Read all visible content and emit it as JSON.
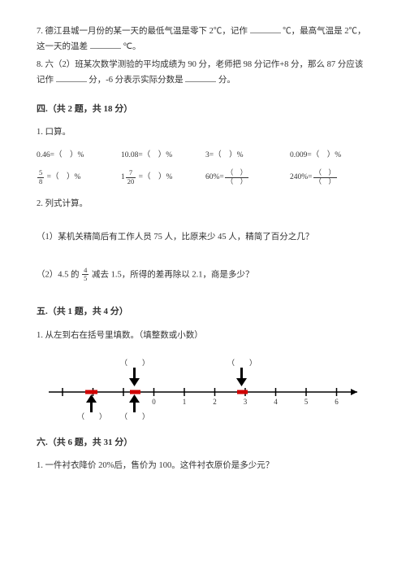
{
  "q7": {
    "text_a": "7. 德江县城一月份的某一天的最低气温是零下 2℃，记作",
    "text_b": "℃，最高气温是 2℃，这一天的温差",
    "text_c": "℃。"
  },
  "q8": {
    "text_a": "8. 六（2）班某次数学测验的平均成绩为 90 分，老师把 98 分记作+8 分，那么 87 分应该记作",
    "text_b": "分，-6 分表示实际分数是",
    "text_c": "分。"
  },
  "sec4": {
    "title": "四.（共 2 题，共 18 分）",
    "q1_label": "1. 口算。",
    "q2_label": "2. 列式计算。",
    "calc": {
      "c1": "0.46=（　）%",
      "c2": "10.08=（　）%",
      "c3": "3=（　）%",
      "c4": "0.009=（　）%",
      "c5_pre": "",
      "c5_post": " =（　）%",
      "c6_pre": "1",
      "c6_post": " =（　）%",
      "c7": "60%=",
      "c8": "240%=",
      "frac58_num": "5",
      "frac58_den": "8",
      "frac720_num": "7",
      "frac720_den": "20",
      "pf_num": "（　）",
      "pf_den": "（　）"
    },
    "sub1": "（1）某机关精简后有工作人员 75 人，比原来少 45 人，精简了百分之几？",
    "sub2_a": "（2）4.5 的 ",
    "sub2_b": " 减去 1.5，所得的差再除以 2.1，商是多少？",
    "frac45_num": "4",
    "frac45_den": "5"
  },
  "sec5": {
    "title": "五.（共 1 题，共 4 分）",
    "q1": "1. 从左到右在括号里填数。（填整数或小数）"
  },
  "sec6": {
    "title": "六.（共 6 题，共 31 分）",
    "q1": "1. 一件衬衣降价 20%后，售价为 100。这件衬衣原价是多少元？"
  },
  "numline": {
    "ticks": [
      "",
      "",
      "",
      "0",
      "1",
      "2",
      "3",
      "4",
      "5",
      "6"
    ],
    "paren": "（　　）",
    "colors": {
      "axis": "#000000",
      "red": "#d00000"
    }
  }
}
